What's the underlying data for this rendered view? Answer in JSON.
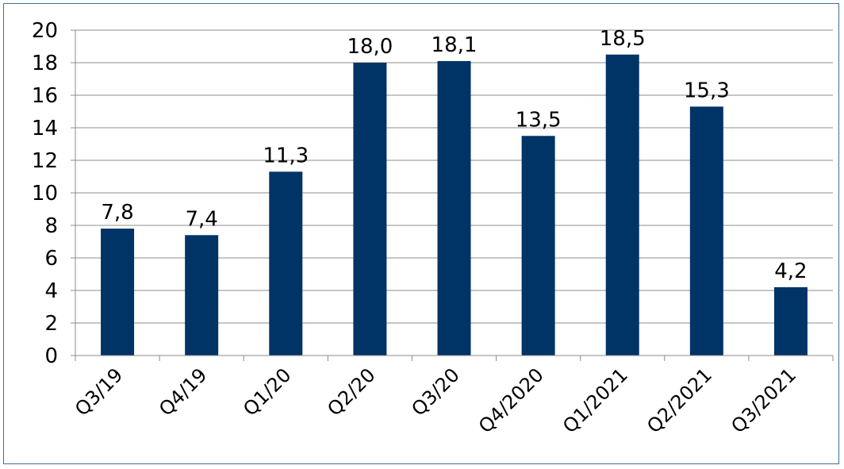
{
  "chart_data": {
    "type": "bar",
    "title": "",
    "xlabel": "",
    "ylabel": "",
    "categories": [
      "Q3/19",
      "Q4/19",
      "Q1/20",
      "Q2/20",
      "Q3/20",
      "Q4/2020",
      "Q1/2021",
      "Q2/2021",
      "Q3/2021"
    ],
    "values": [
      7.8,
      7.4,
      11.3,
      18.0,
      18.1,
      13.5,
      18.5,
      15.3,
      4.2
    ],
    "value_labels": [
      "7,8",
      "7,4",
      "11,3",
      "18,0",
      "18,1",
      "13,5",
      "18,5",
      "15,3",
      "4,2"
    ],
    "ylim": [
      0,
      20
    ],
    "yticks": [
      0,
      2,
      4,
      6,
      8,
      10,
      12,
      14,
      16,
      18,
      20
    ],
    "grid": true,
    "legend": "none",
    "bar_color": "#003366",
    "grid_color": "#8c8c8c",
    "border_color": "#3f6e9a"
  }
}
